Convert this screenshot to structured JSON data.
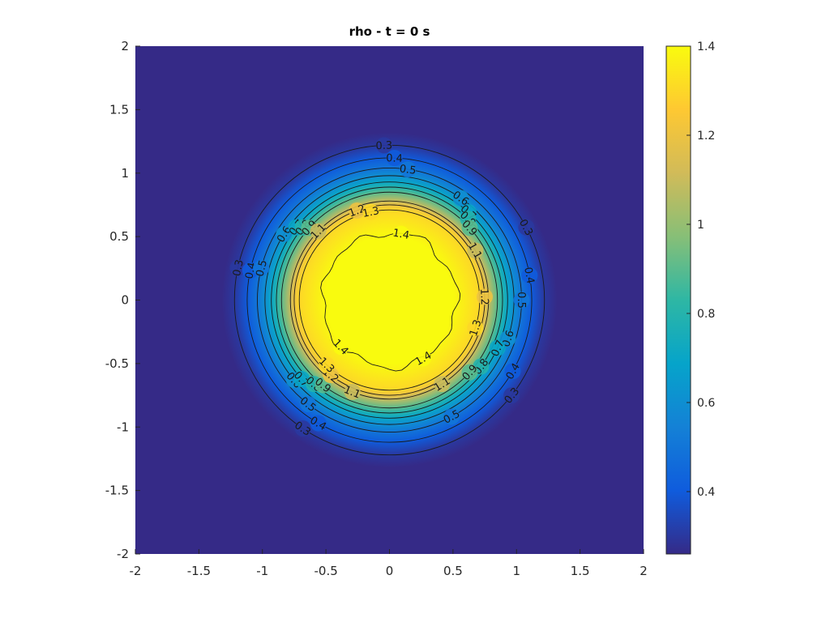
{
  "chart_data": {
    "type": "heatmap",
    "subtype": "filled-image-with-contours",
    "title": "rho - t = 0 s",
    "xlabel": "",
    "ylabel": "",
    "xlim": [
      -2,
      2
    ],
    "ylim": [
      -2,
      2
    ],
    "x_ticks": [
      "-2",
      "-1.5",
      "-1",
      "-0.5",
      "0",
      "0.5",
      "1",
      "1.5",
      "2"
    ],
    "x_tick_values": [
      -2,
      -1.5,
      -1,
      -0.5,
      0,
      0.5,
      1,
      1.5,
      2
    ],
    "y_ticks": [
      "2",
      "1.5",
      "1",
      "0.5",
      "0",
      "-0.5",
      "-1",
      "-1.5",
      "-2"
    ],
    "y_tick_values": [
      2,
      1.5,
      1,
      0.5,
      0,
      -0.5,
      -1,
      -1.5,
      -2
    ],
    "colormap": "parula",
    "colormap_stops": [
      "#352a87",
      "#0f5cdd",
      "#1481d6",
      "#06a4ca",
      "#2eb7a4",
      "#87bf77",
      "#d1bb59",
      "#fec832",
      "#f9fb0e"
    ],
    "clim": [
      0.26,
      1.4
    ],
    "colorbar": {
      "location": "right",
      "ticks": [
        "1.4",
        "1.2",
        "1",
        "0.8",
        "0.6",
        "0.4"
      ],
      "tick_values": [
        1.4,
        1.2,
        1,
        0.8,
        0.6,
        0.4
      ]
    },
    "field": {
      "description_shape": "radially symmetric density blob centered at (0,0)",
      "background_value": 0.26,
      "peak_value": 1.4
    },
    "contours": [
      {
        "level": 0.3,
        "radius": 1.22,
        "label": "0.3"
      },
      {
        "level": 0.4,
        "radius": 1.12,
        "label": "0.4"
      },
      {
        "level": 0.5,
        "radius": 1.04,
        "label": "0.5"
      },
      {
        "level": 0.6,
        "radius": 0.98,
        "label": "0.6"
      },
      {
        "level": 0.7,
        "radius": 0.93,
        "label": "0.7"
      },
      {
        "level": 0.8,
        "radius": 0.89,
        "label": "0.8"
      },
      {
        "level": 0.9,
        "radius": 0.85,
        "label": "0.9"
      },
      {
        "level": 1.1,
        "radius": 0.78,
        "label": "1.1"
      },
      {
        "level": 1.2,
        "radius": 0.75,
        "label": "1.2"
      },
      {
        "level": 1.3,
        "radius": 0.71,
        "label": "1.3"
      },
      {
        "level": 1.4,
        "radius": 0.53,
        "label": "1.4"
      }
    ]
  }
}
